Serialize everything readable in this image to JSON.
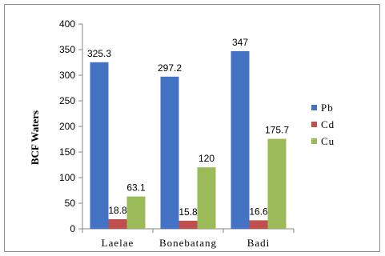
{
  "chart_data": {
    "type": "bar",
    "title": "",
    "xlabel": "",
    "ylabel": "BCF Waters",
    "categories": [
      "Laelae",
      "Bonebatang",
      "Badi"
    ],
    "series": [
      {
        "name": "Pb",
        "values": [
          325.3,
          297.2,
          347
        ],
        "color": "#4472C4"
      },
      {
        "name": "Cd",
        "values": [
          18.8,
          15.8,
          16.6
        ],
        "color": "#C0504D"
      },
      {
        "name": "Cu",
        "values": [
          63.1,
          120,
          175.7
        ],
        "color": "#9BBB59"
      }
    ],
    "data_labels": [
      [
        "325.3",
        "297.2",
        "347"
      ],
      [
        "18.8",
        "15.8",
        "16.6"
      ],
      [
        "63.1",
        "120",
        "175.7"
      ]
    ],
    "ylim": [
      0,
      400
    ],
    "yticks": [
      "0",
      "50",
      "100",
      "150",
      "200",
      "250",
      "300",
      "350",
      "400"
    ],
    "grid": false,
    "legend": "right"
  }
}
